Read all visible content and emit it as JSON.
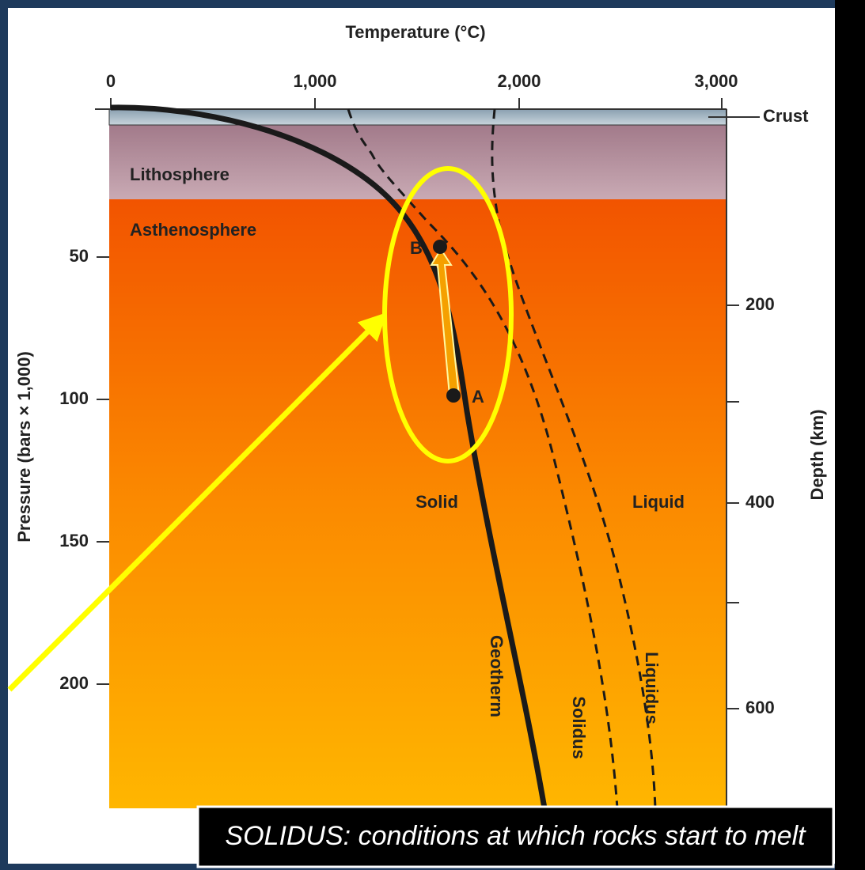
{
  "header": {
    "title": "Temperature (°C)"
  },
  "axes": {
    "left_label": "Pressure (bars × 1,000)",
    "right_label": "Depth (km)",
    "top_ticks": [
      "0",
      "1,000",
      "2,000",
      "3,000"
    ],
    "left_ticks": [
      "50",
      "100",
      "150",
      "200"
    ],
    "right_ticks": [
      "200",
      "400",
      "600"
    ]
  },
  "layers": {
    "crust": "Crust",
    "lithosphere": "Lithosphere",
    "asthenosphere": "Asthenosphere"
  },
  "regions": {
    "solid": "Solid",
    "liquid": "Liquid"
  },
  "curves": {
    "geotherm": "Geotherm",
    "solidus": "Solidus",
    "liquidus": "Liquidus"
  },
  "points": {
    "a": "A",
    "b": "B"
  },
  "caption": "SOLIDUS: conditions at which rocks start to melt"
}
